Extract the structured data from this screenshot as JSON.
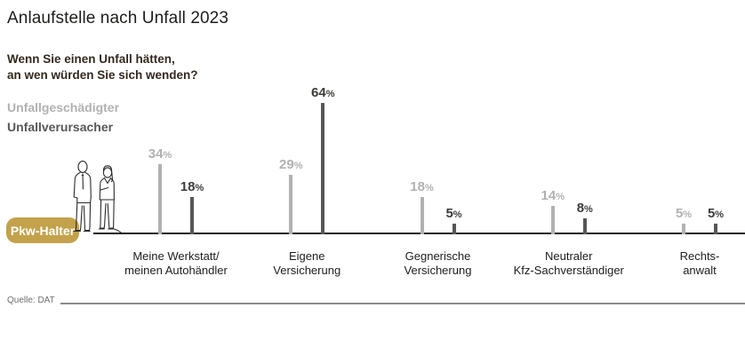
{
  "page": {
    "title": "Anlaufstelle nach Unfall 2023",
    "question": {
      "line1": "Wenn Sie einen Unfall hätten,",
      "line2": "an wen würden Sie sich wenden?"
    },
    "axis_badge": "Pkw-Halter",
    "source": "Quelle: DAT"
  },
  "colors": {
    "victim_gray": "#b1b1b1",
    "causer_dark": "#575756",
    "causer_label_dark": "#3c3c3b",
    "badge_gold": "#c3a24b",
    "baseline_dark": "#1d1d1b",
    "question_brown": "#33281e"
  },
  "chart_data": {
    "type": "bar",
    "unit": "%",
    "title": "Anlaufstelle nach Unfall 2023",
    "subtitle": "Wenn Sie einen Unfall hätten, an wen würden Sie sich wenden?",
    "xlabel": "",
    "ylabel": "",
    "ylim": [
      0,
      70
    ],
    "grid": false,
    "legend_position": "upper-left",
    "categories": [
      [
        "Meine Werkstatt/",
        "meinen Autohändler"
      ],
      [
        "Eigene",
        "Versicherung"
      ],
      [
        "Gegnerische",
        "Versicherung"
      ],
      [
        "Neutraler",
        "Kfz-Sachverständiger"
      ],
      [
        "Rechts-",
        "anwalt"
      ]
    ],
    "series": [
      {
        "name": "Unfallgeschädigter",
        "color": "#b1b1b1",
        "label_color": "#b1b1b1",
        "values": [
          34,
          29,
          18,
          14,
          5
        ]
      },
      {
        "name": "Unfallverursacher",
        "color": "#575756",
        "label_color": "#3c3c3b",
        "values": [
          18,
          64,
          5,
          8,
          5
        ]
      }
    ]
  }
}
